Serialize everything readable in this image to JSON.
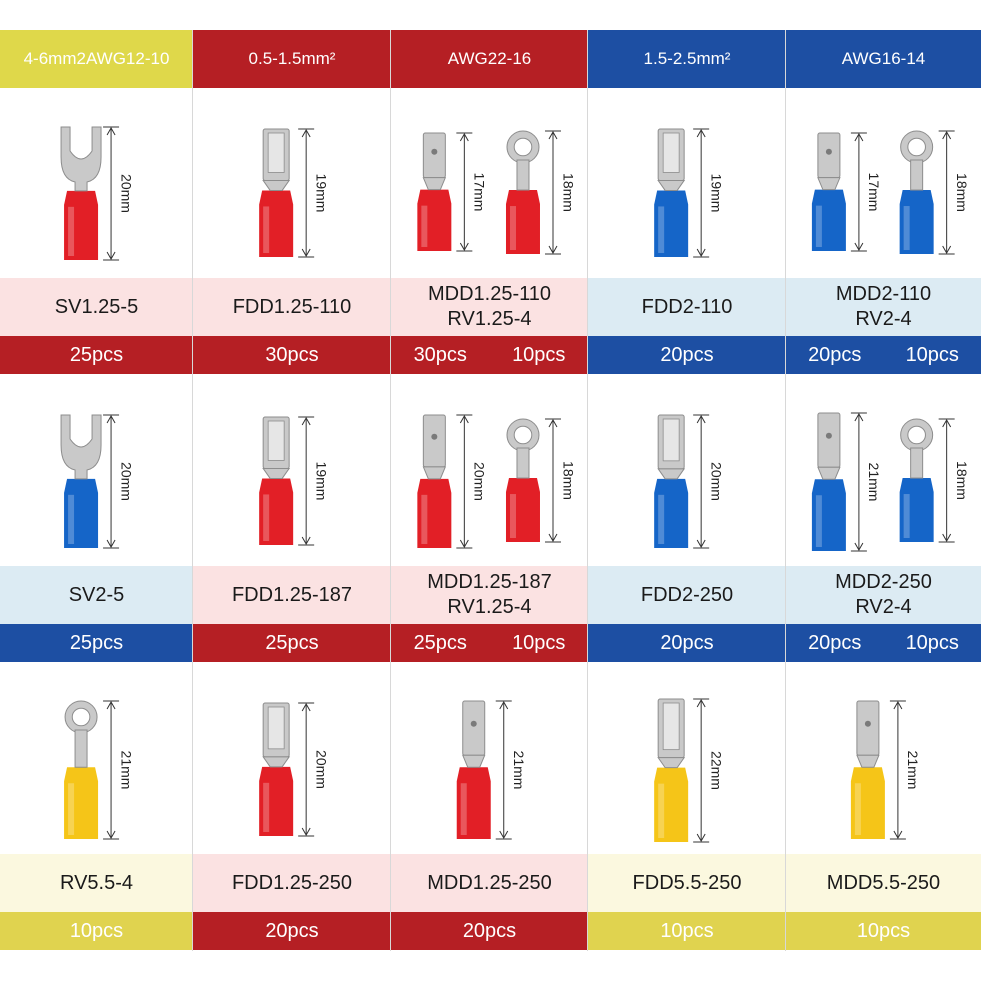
{
  "colors": {
    "yellow_header": "#dfd84a",
    "red": "#b51f24",
    "blue": "#1d4fa3",
    "pink_label": "#fbe2e2",
    "lightblue_label": "#dcebf3",
    "cream_label": "#fbf8df",
    "yellow_count": "#e0d34f",
    "sleeve_red": "#e21f26",
    "sleeve_blue": "#1565c8",
    "sleeve_yellow": "#f5c518",
    "metal": "#c9c9c9"
  },
  "headers": [
    "4-6mm2AWG12-10",
    "0.5-1.5mm²",
    "AWG22-16",
    "1.5-2.5mm²",
    "AWG16-14"
  ],
  "rows": [
    {
      "cells": [
        {
          "items": [
            {
              "shape": "fork",
              "sleeve": "red",
              "dim": "20mm"
            }
          ],
          "names": [
            "SV1.25-5"
          ],
          "counts": [
            "25pcs"
          ],
          "label_bg": "pink",
          "count_bg": "red"
        },
        {
          "items": [
            {
              "shape": "female",
              "sleeve": "red",
              "dim": "19mm"
            }
          ],
          "names": [
            "FDD1.25-110"
          ],
          "counts": [
            "30pcs"
          ],
          "label_bg": "pink",
          "count_bg": "red"
        },
        {
          "items": [
            {
              "shape": "male",
              "sleeve": "red",
              "dim": "17mm"
            },
            {
              "shape": "ring",
              "sleeve": "red",
              "dim": "18mm"
            }
          ],
          "names": [
            "MDD1.25-110",
            "RV1.25-4"
          ],
          "counts": [
            "30pcs",
            "10pcs"
          ],
          "label_bg": "pink",
          "count_bg": "red"
        },
        {
          "items": [
            {
              "shape": "female",
              "sleeve": "blue",
              "dim": "19mm"
            }
          ],
          "names": [
            "FDD2-110"
          ],
          "counts": [
            "20pcs"
          ],
          "label_bg": "lightblue",
          "count_bg": "blue"
        },
        {
          "items": [
            {
              "shape": "male",
              "sleeve": "blue",
              "dim": "17mm"
            },
            {
              "shape": "ring",
              "sleeve": "blue",
              "dim": "18mm"
            }
          ],
          "names": [
            "MDD2-110",
            "RV2-4"
          ],
          "counts": [
            "20pcs",
            "10pcs"
          ],
          "label_bg": "lightblue",
          "count_bg": "blue"
        }
      ]
    },
    {
      "cells": [
        {
          "items": [
            {
              "shape": "fork",
              "sleeve": "blue",
              "dim": "20mm"
            }
          ],
          "names": [
            "SV2-5"
          ],
          "counts": [
            "25pcs"
          ],
          "label_bg": "lightblue",
          "count_bg": "blue"
        },
        {
          "items": [
            {
              "shape": "female",
              "sleeve": "red",
              "dim": "19mm"
            }
          ],
          "names": [
            "FDD1.25-187"
          ],
          "counts": [
            "25pcs"
          ],
          "label_bg": "pink",
          "count_bg": "red"
        },
        {
          "items": [
            {
              "shape": "male",
              "sleeve": "red",
              "dim": "20mm"
            },
            {
              "shape": "ring",
              "sleeve": "red",
              "dim": "18mm"
            }
          ],
          "names": [
            "MDD1.25-187",
            "RV1.25-4"
          ],
          "counts": [
            "25pcs",
            "10pcs"
          ],
          "label_bg": "pink",
          "count_bg": "red"
        },
        {
          "items": [
            {
              "shape": "female",
              "sleeve": "blue",
              "dim": "20mm"
            }
          ],
          "names": [
            "FDD2-250"
          ],
          "counts": [
            "20pcs"
          ],
          "label_bg": "lightblue",
          "count_bg": "blue"
        },
        {
          "items": [
            {
              "shape": "male",
              "sleeve": "blue",
              "dim": "21mm"
            },
            {
              "shape": "ring",
              "sleeve": "blue",
              "dim": "18mm"
            }
          ],
          "names": [
            "MDD2-250",
            "RV2-4"
          ],
          "counts": [
            "20pcs",
            "10pcs"
          ],
          "label_bg": "lightblue",
          "count_bg": "blue"
        }
      ]
    },
    {
      "cells": [
        {
          "items": [
            {
              "shape": "ring",
              "sleeve": "yellow",
              "dim": "21mm"
            }
          ],
          "names": [
            "RV5.5-4"
          ],
          "counts": [
            "10pcs"
          ],
          "label_bg": "cream",
          "count_bg": "yellow"
        },
        {
          "items": [
            {
              "shape": "female",
              "sleeve": "red",
              "dim": "20mm"
            }
          ],
          "names": [
            "FDD1.25-250"
          ],
          "counts": [
            "20pcs"
          ],
          "label_bg": "pink",
          "count_bg": "red"
        },
        {
          "items": [
            {
              "shape": "male",
              "sleeve": "red",
              "dim": "21mm"
            }
          ],
          "names": [
            "MDD1.25-250"
          ],
          "counts": [
            "20pcs"
          ],
          "label_bg": "pink",
          "count_bg": "red"
        },
        {
          "items": [
            {
              "shape": "female",
              "sleeve": "yellow",
              "dim": "22mm"
            }
          ],
          "names": [
            "FDD5.5-250"
          ],
          "counts": [
            "10pcs"
          ],
          "label_bg": "cream",
          "count_bg": "yellow"
        },
        {
          "items": [
            {
              "shape": "male",
              "sleeve": "yellow",
              "dim": "21mm"
            }
          ],
          "names": [
            "MDD5.5-250"
          ],
          "counts": [
            "10pcs"
          ],
          "label_bg": "cream",
          "count_bg": "yellow"
        }
      ]
    }
  ]
}
